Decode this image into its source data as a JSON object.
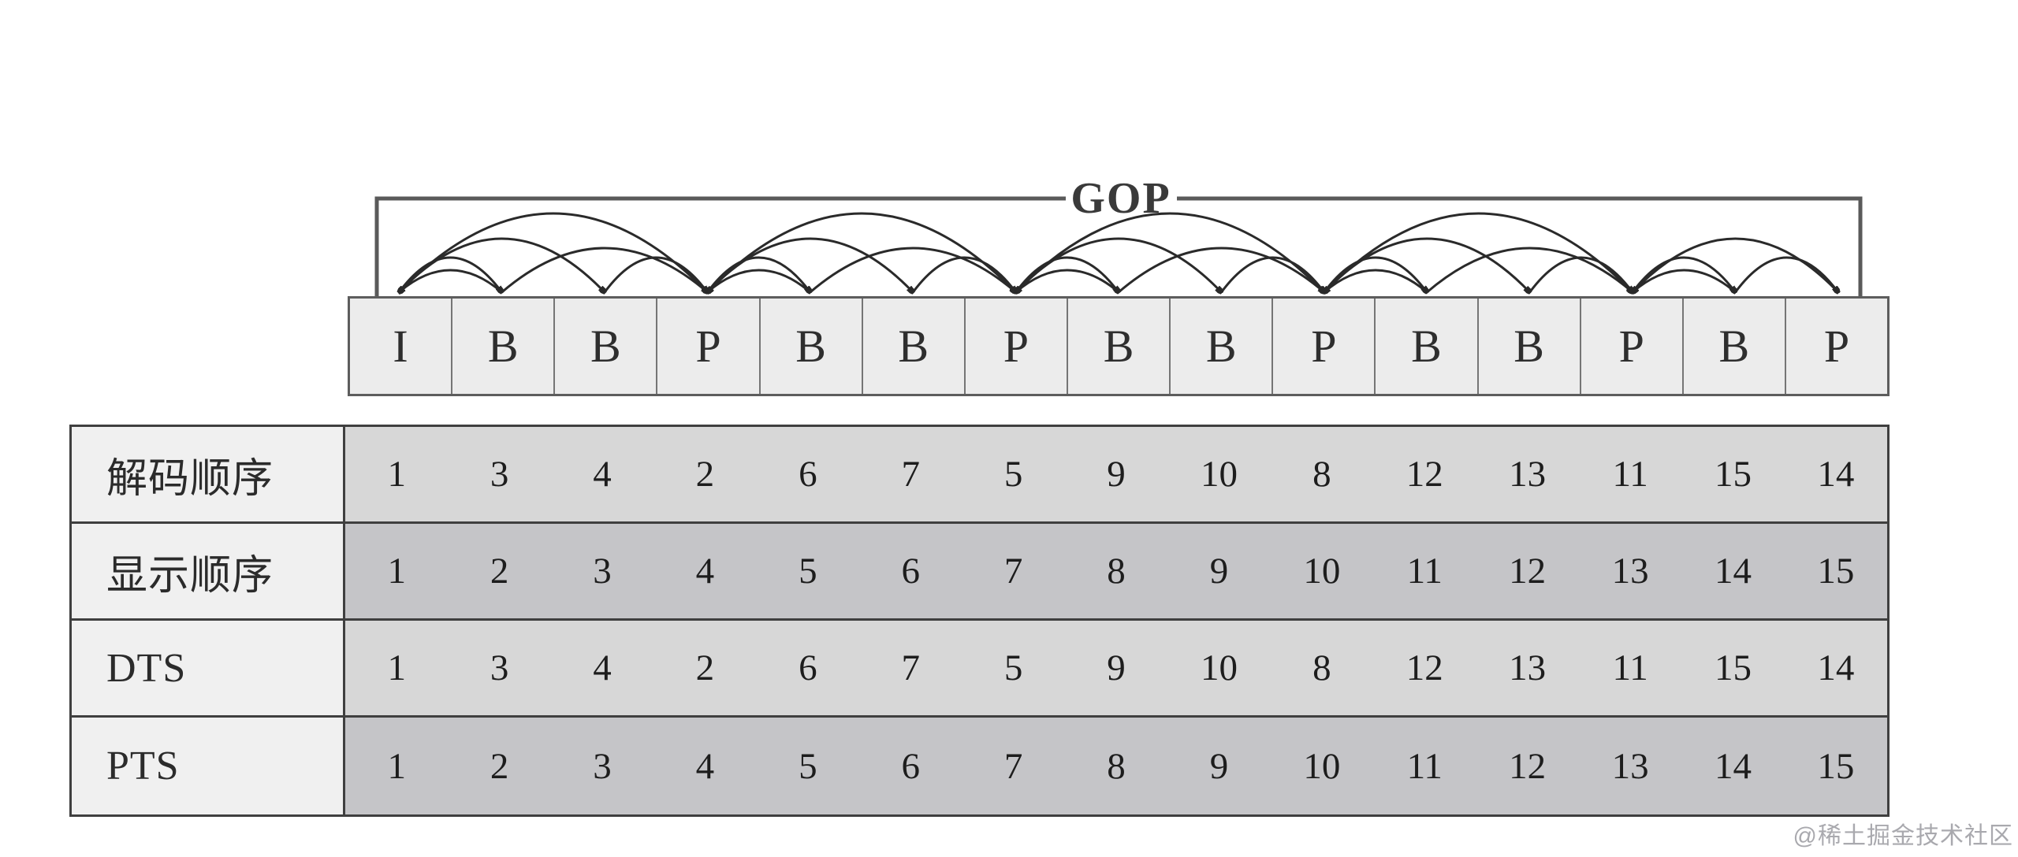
{
  "diagram": {
    "gop_label": "GOP",
    "frames": [
      "I",
      "B",
      "B",
      "P",
      "B",
      "B",
      "P",
      "B",
      "B",
      "P",
      "B",
      "B",
      "P",
      "B",
      "P"
    ],
    "reference_arcs": [
      {
        "from": 4,
        "to": 1,
        "arc": "tall"
      },
      {
        "from": 2,
        "to": 1,
        "arc": "short"
      },
      {
        "from": 1,
        "to": 2,
        "arc": "low"
      },
      {
        "from": 1,
        "to": 3,
        "arc": "mid"
      },
      {
        "from": 2,
        "to": 4,
        "arc": "low2"
      },
      {
        "from": 3,
        "to": 4,
        "arc": "low"
      },
      {
        "from": 7,
        "to": 4,
        "arc": "tall"
      },
      {
        "from": 5,
        "to": 4,
        "arc": "short"
      },
      {
        "from": 4,
        "to": 5,
        "arc": "low"
      },
      {
        "from": 4,
        "to": 6,
        "arc": "mid"
      },
      {
        "from": 5,
        "to": 7,
        "arc": "low2"
      },
      {
        "from": 6,
        "to": 7,
        "arc": "low"
      },
      {
        "from": 10,
        "to": 7,
        "arc": "tall"
      },
      {
        "from": 8,
        "to": 7,
        "arc": "short"
      },
      {
        "from": 7,
        "to": 8,
        "arc": "low"
      },
      {
        "from": 7,
        "to": 9,
        "arc": "mid"
      },
      {
        "from": 8,
        "to": 10,
        "arc": "low2"
      },
      {
        "from": 9,
        "to": 10,
        "arc": "low"
      },
      {
        "from": 13,
        "to": 10,
        "arc": "tall"
      },
      {
        "from": 11,
        "to": 10,
        "arc": "short"
      },
      {
        "from": 10,
        "to": 11,
        "arc": "low"
      },
      {
        "from": 10,
        "to": 12,
        "arc": "mid"
      },
      {
        "from": 11,
        "to": 13,
        "arc": "low2"
      },
      {
        "from": 12,
        "to": 13,
        "arc": "low"
      },
      {
        "from": 15,
        "to": 13,
        "arc": "mid"
      },
      {
        "from": 14,
        "to": 13,
        "arc": "short"
      },
      {
        "from": 13,
        "to": 14,
        "arc": "low"
      },
      {
        "from": 14,
        "to": 15,
        "arc": "low"
      }
    ]
  },
  "table": {
    "rows": [
      {
        "label": "解码顺序",
        "tone": "light",
        "values": [
          "1",
          "3",
          "4",
          "2",
          "6",
          "7",
          "5",
          "9",
          "10",
          "8",
          "12",
          "13",
          "11",
          "15",
          "14"
        ]
      },
      {
        "label": "显示顺序",
        "tone": "dark",
        "values": [
          "1",
          "2",
          "3",
          "4",
          "5",
          "6",
          "7",
          "8",
          "9",
          "10",
          "11",
          "12",
          "13",
          "14",
          "15"
        ]
      },
      {
        "label": "DTS",
        "tone": "light",
        "values": [
          "1",
          "3",
          "4",
          "2",
          "6",
          "7",
          "5",
          "9",
          "10",
          "8",
          "12",
          "13",
          "11",
          "15",
          "14"
        ]
      },
      {
        "label": "PTS",
        "tone": "dark",
        "values": [
          "1",
          "2",
          "3",
          "4",
          "5",
          "6",
          "7",
          "8",
          "9",
          "10",
          "11",
          "12",
          "13",
          "14",
          "15"
        ]
      }
    ]
  },
  "watermark": "@稀土掘金技术社区",
  "colors": {
    "row_light": "#d7d7d7",
    "row_dark": "#c5c5c8",
    "header_bg": "#f0f0f0",
    "frame_bg": "#ececec",
    "border": "#3f3f3f",
    "arc": "#2a2a2a",
    "bracket": "#5a5a5a"
  }
}
